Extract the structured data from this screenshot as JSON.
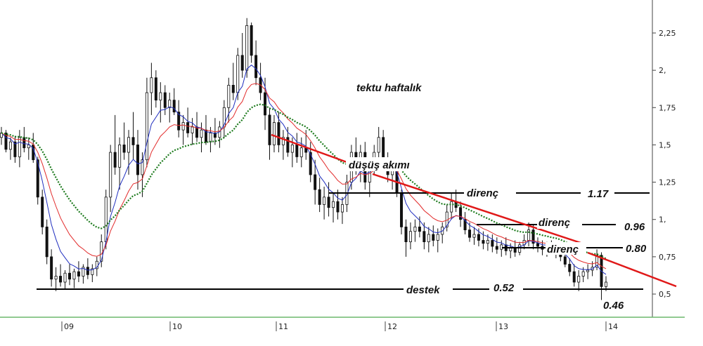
{
  "chart_data": {
    "type": "candlestick",
    "title": "tektu haftalık",
    "y_ticks": [
      "0,5",
      "0,75",
      "1,",
      "1,25",
      "1,5",
      "1,75",
      "2,",
      "2,25"
    ],
    "y_tick_values": [
      0.5,
      0.75,
      1.0,
      1.25,
      1.5,
      1.75,
      2.0,
      2.25
    ],
    "x_ticks": [
      "09",
      "10",
      "11",
      "12",
      "13",
      "14"
    ],
    "ylim": [
      0.35,
      2.4
    ],
    "ohlc": [
      [
        1.55,
        1.62,
        1.5,
        1.58
      ],
      [
        1.58,
        1.6,
        1.45,
        1.47
      ],
      [
        1.47,
        1.55,
        1.4,
        1.52
      ],
      [
        1.52,
        1.56,
        1.38,
        1.42
      ],
      [
        1.42,
        1.6,
        1.35,
        1.55
      ],
      [
        1.55,
        1.62,
        1.45,
        1.48
      ],
      [
        1.48,
        1.55,
        1.4,
        1.5
      ],
      [
        1.5,
        1.58,
        1.38,
        1.4
      ],
      [
        1.4,
        1.42,
        1.1,
        1.15
      ],
      [
        1.15,
        1.2,
        0.9,
        0.95
      ],
      [
        0.95,
        1.0,
        0.7,
        0.75
      ],
      [
        0.75,
        0.8,
        0.55,
        0.6
      ],
      [
        0.6,
        0.68,
        0.52,
        0.62
      ],
      [
        0.62,
        0.7,
        0.55,
        0.58
      ],
      [
        0.58,
        0.66,
        0.53,
        0.64
      ],
      [
        0.64,
        0.7,
        0.56,
        0.6
      ],
      [
        0.6,
        0.67,
        0.54,
        0.65
      ],
      [
        0.65,
        0.72,
        0.58,
        0.62
      ],
      [
        0.62,
        0.7,
        0.57,
        0.68
      ],
      [
        0.68,
        0.74,
        0.6,
        0.63
      ],
      [
        0.63,
        0.7,
        0.58,
        0.67
      ],
      [
        0.67,
        0.75,
        0.62,
        0.72
      ],
      [
        0.72,
        0.9,
        0.68,
        0.85
      ],
      [
        0.85,
        1.2,
        0.8,
        1.15
      ],
      [
        1.15,
        1.5,
        1.05,
        1.45
      ],
      [
        1.45,
        1.7,
        1.3,
        1.35
      ],
      [
        1.35,
        1.55,
        1.2,
        1.5
      ],
      [
        1.5,
        1.65,
        1.4,
        1.45
      ],
      [
        1.45,
        1.6,
        1.3,
        1.55
      ],
      [
        1.55,
        1.72,
        1.4,
        1.5
      ],
      [
        1.5,
        1.6,
        1.2,
        1.3
      ],
      [
        1.3,
        1.45,
        1.15,
        1.4
      ],
      [
        1.4,
        1.95,
        1.35,
        1.85
      ],
      [
        1.85,
        2.05,
        1.7,
        1.95
      ],
      [
        1.95,
        2.0,
        1.75,
        1.8
      ],
      [
        1.8,
        1.92,
        1.65,
        1.85
      ],
      [
        1.85,
        1.9,
        1.7,
        1.75
      ],
      [
        1.75,
        1.85,
        1.65,
        1.8
      ],
      [
        1.8,
        1.88,
        1.7,
        1.72
      ],
      [
        1.72,
        1.8,
        1.55,
        1.6
      ],
      [
        1.6,
        1.7,
        1.5,
        1.65
      ],
      [
        1.65,
        1.75,
        1.55,
        1.58
      ],
      [
        1.58,
        1.68,
        1.5,
        1.62
      ],
      [
        1.62,
        1.72,
        1.52,
        1.55
      ],
      [
        1.55,
        1.65,
        1.45,
        1.6
      ],
      [
        1.6,
        1.7,
        1.5,
        1.52
      ],
      [
        1.52,
        1.62,
        1.45,
        1.58
      ],
      [
        1.58,
        1.68,
        1.5,
        1.55
      ],
      [
        1.55,
        1.66,
        1.48,
        1.62
      ],
      [
        1.62,
        1.8,
        1.55,
        1.75
      ],
      [
        1.75,
        1.95,
        1.65,
        1.9
      ],
      [
        1.9,
        2.05,
        1.8,
        1.85
      ],
      [
        1.85,
        2.15,
        1.8,
        2.1
      ],
      [
        2.1,
        2.25,
        1.95,
        2.0
      ],
      [
        2.0,
        2.35,
        1.95,
        2.3
      ],
      [
        2.3,
        2.32,
        2.05,
        2.1
      ],
      [
        2.1,
        2.2,
        1.9,
        1.95
      ],
      [
        1.95,
        2.05,
        1.8,
        1.85
      ],
      [
        1.85,
        1.95,
        1.6,
        1.7
      ],
      [
        1.7,
        1.75,
        1.4,
        1.5
      ],
      [
        1.5,
        1.7,
        1.45,
        1.65
      ],
      [
        1.65,
        1.72,
        1.45,
        1.5
      ],
      [
        1.5,
        1.6,
        1.4,
        1.55
      ],
      [
        1.55,
        1.62,
        1.42,
        1.45
      ],
      [
        1.45,
        1.55,
        1.35,
        1.5
      ],
      [
        1.5,
        1.58,
        1.38,
        1.42
      ],
      [
        1.42,
        1.55,
        1.35,
        1.48
      ],
      [
        1.48,
        1.6,
        1.4,
        1.45
      ],
      [
        1.45,
        1.52,
        1.25,
        1.3
      ],
      [
        1.3,
        1.4,
        1.1,
        1.2
      ],
      [
        1.2,
        1.28,
        1.05,
        1.1
      ],
      [
        1.1,
        1.22,
        1.0,
        1.15
      ],
      [
        1.15,
        1.25,
        1.02,
        1.08
      ],
      [
        1.08,
        1.18,
        0.98,
        1.12
      ],
      [
        1.12,
        1.2,
        1.0,
        1.05
      ],
      [
        1.05,
        1.15,
        0.97,
        1.1
      ],
      [
        1.1,
        1.3,
        1.05,
        1.25
      ],
      [
        1.25,
        1.5,
        1.2,
        1.45
      ],
      [
        1.45,
        1.55,
        1.3,
        1.35
      ],
      [
        1.35,
        1.5,
        1.25,
        1.45
      ],
      [
        1.45,
        1.52,
        1.2,
        1.25
      ],
      [
        1.25,
        1.4,
        1.15,
        1.35
      ],
      [
        1.35,
        1.5,
        1.3,
        1.45
      ],
      [
        1.45,
        1.62,
        1.4,
        1.55
      ],
      [
        1.55,
        1.6,
        1.38,
        1.4
      ],
      [
        1.4,
        1.45,
        1.25,
        1.3
      ],
      [
        1.3,
        1.4,
        1.2,
        1.35
      ],
      [
        1.35,
        1.38,
        1.15,
        1.18
      ],
      [
        1.18,
        1.2,
        0.9,
        0.95
      ],
      [
        0.95,
        1.0,
        0.75,
        0.85
      ],
      [
        0.85,
        0.98,
        0.8,
        0.92
      ],
      [
        0.92,
        1.0,
        0.85,
        0.95
      ],
      [
        0.95,
        1.02,
        0.88,
        0.92
      ],
      [
        0.92,
        0.98,
        0.8,
        0.85
      ],
      [
        0.85,
        0.95,
        0.78,
        0.9
      ],
      [
        0.9,
        0.96,
        0.82,
        0.86
      ],
      [
        0.86,
        0.94,
        0.78,
        0.9
      ],
      [
        0.9,
        0.98,
        0.84,
        0.95
      ],
      [
        0.95,
        1.1,
        0.92,
        1.05
      ],
      [
        1.05,
        1.18,
        1.0,
        1.12
      ],
      [
        1.12,
        1.2,
        1.05,
        1.08
      ],
      [
        1.08,
        1.12,
        0.95,
        1.0
      ],
      [
        1.0,
        1.05,
        0.9,
        0.93
      ],
      [
        0.93,
        0.98,
        0.85,
        0.88
      ],
      [
        0.88,
        0.95,
        0.83,
        0.9
      ],
      [
        0.9,
        0.94,
        0.82,
        0.86
      ],
      [
        0.86,
        0.92,
        0.8,
        0.84
      ],
      [
        0.84,
        0.9,
        0.79,
        0.86
      ],
      [
        0.86,
        0.9,
        0.78,
        0.82
      ],
      [
        0.82,
        0.88,
        0.77,
        0.8
      ],
      [
        0.8,
        0.86,
        0.75,
        0.83
      ],
      [
        0.83,
        0.88,
        0.76,
        0.79
      ],
      [
        0.79,
        0.84,
        0.74,
        0.81
      ],
      [
        0.81,
        0.86,
        0.75,
        0.78
      ],
      [
        0.78,
        0.85,
        0.76,
        0.83
      ],
      [
        0.83,
        0.9,
        0.8,
        0.86
      ],
      [
        0.86,
        0.98,
        0.82,
        0.93
      ],
      [
        0.93,
        0.97,
        0.8,
        0.84
      ],
      [
        0.84,
        0.88,
        0.78,
        0.82
      ],
      [
        0.82,
        0.86,
        0.76,
        0.8
      ],
      [
        0.8,
        0.85,
        0.75,
        0.82
      ],
      [
        0.82,
        0.86,
        0.77,
        0.79
      ],
      [
        0.79,
        0.84,
        0.74,
        0.81
      ],
      [
        0.81,
        0.84,
        0.72,
        0.75
      ],
      [
        0.75,
        0.8,
        0.68,
        0.7
      ],
      [
        0.7,
        0.74,
        0.62,
        0.65
      ],
      [
        0.65,
        0.7,
        0.55,
        0.58
      ],
      [
        0.58,
        0.66,
        0.52,
        0.62
      ],
      [
        0.62,
        0.68,
        0.58,
        0.65
      ],
      [
        0.65,
        0.7,
        0.6,
        0.66
      ],
      [
        0.66,
        0.72,
        0.62,
        0.68
      ],
      [
        0.68,
        0.8,
        0.66,
        0.76
      ],
      [
        0.76,
        0.78,
        0.46,
        0.55
      ],
      [
        0.55,
        0.62,
        0.52,
        0.58
      ]
    ],
    "ma_short_color": "#1f2ebf",
    "ma_mid_color": "#e22b2b",
    "ma_long_color": "#1c7a1c",
    "support_line": {
      "label": "destek",
      "value_label": "0.52",
      "y": 0.52
    },
    "low_label": {
      "value_label": "0.46",
      "y": 0.46
    },
    "resistances": [
      {
        "label": "direnç",
        "value_label": "1.17",
        "y": 1.17
      },
      {
        "label": "direnç",
        "value_label": "0.96",
        "y": 0.96
      },
      {
        "label": "direnç",
        "value_label": "0.80",
        "y": 0.8
      }
    ],
    "trend_label": "düşüş akımı",
    "trend_color": "#e01818"
  }
}
